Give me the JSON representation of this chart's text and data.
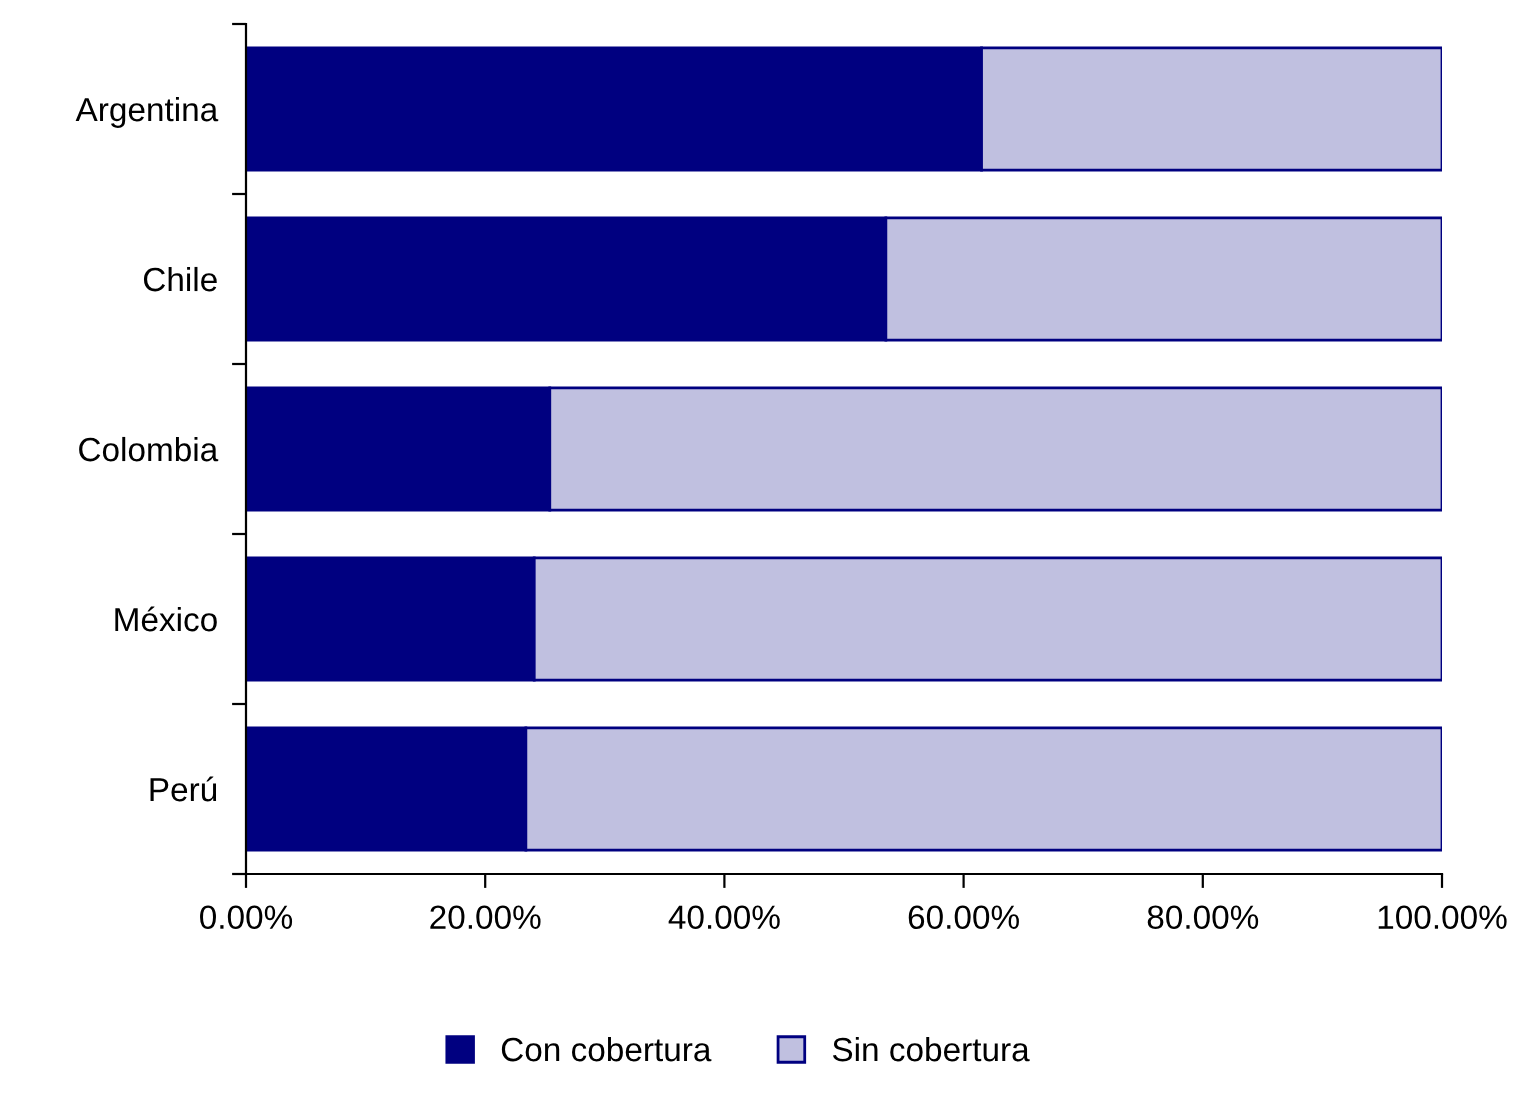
{
  "chart_data": {
    "type": "bar",
    "orientation": "horizontal",
    "stacked": true,
    "categories": [
      "Argentina",
      "Chile",
      "Colombia",
      "México",
      "Perú"
    ],
    "series": [
      {
        "name": "Con cobertura",
        "color": "#000080",
        "values": [
          61.5,
          53.5,
          25.4,
          24.1,
          23.4
        ]
      },
      {
        "name": "Sin cobertura",
        "color": "#c0c0e0",
        "values": [
          38.5,
          46.5,
          74.6,
          75.9,
          76.6
        ]
      }
    ],
    "xlim": [
      0,
      100
    ],
    "xticks": [
      {
        "value": 0,
        "label": "0.00%"
      },
      {
        "value": 20,
        "label": "20.00%"
      },
      {
        "value": 40,
        "label": "40.00%"
      },
      {
        "value": 60,
        "label": "60.00%"
      },
      {
        "value": 80,
        "label": "80.00%"
      },
      {
        "value": 100,
        "label": "100.00%"
      }
    ],
    "grid": false,
    "legend": "bottom"
  }
}
